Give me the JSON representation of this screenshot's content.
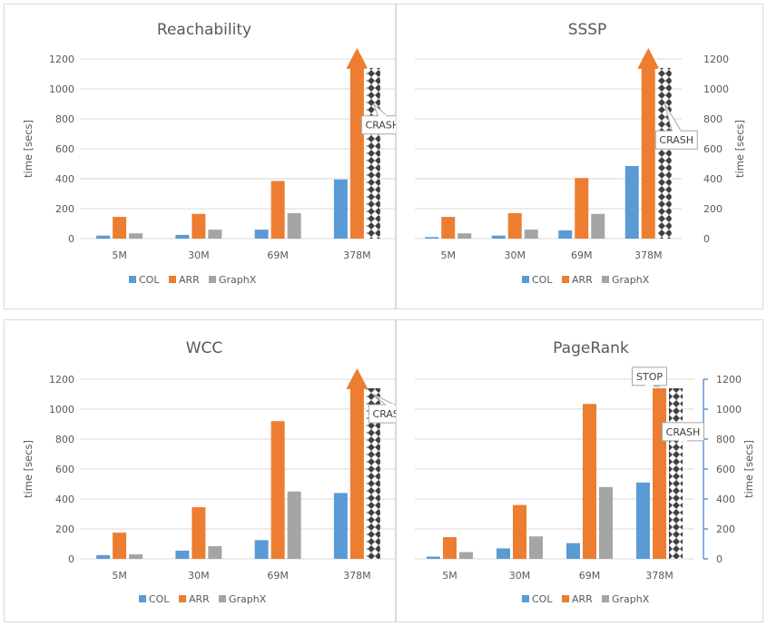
{
  "chart_data": [
    {
      "type": "bar",
      "title": "Reachability",
      "categories": [
        "5M",
        "30M",
        "69M",
        "378M"
      ],
      "ylabel": "time [secs]",
      "ylim": [
        0,
        1200
      ],
      "yticks": [
        0,
        200,
        400,
        600,
        800,
        1000,
        1200
      ],
      "yaxis_side": "left",
      "grid": true,
      "legend": "bottom",
      "series": [
        {
          "name": "COL",
          "values": [
            20,
            25,
            60,
            395
          ],
          "color": "#5B9BD5"
        },
        {
          "name": "ARR",
          "values": [
            145,
            165,
            385,
            1140
          ],
          "color": "#ED7D31"
        },
        {
          "name": "GraphX",
          "values": [
            35,
            60,
            170,
            1140
          ],
          "color": "#A5A5A5"
        }
      ],
      "annotations": [
        {
          "text": "CRASH",
          "series": "GraphX",
          "category": "378M"
        }
      ]
    },
    {
      "type": "bar",
      "title": "SSSP",
      "categories": [
        "5M",
        "30M",
        "69M",
        "378M"
      ],
      "ylabel": "time [secs]",
      "ylim": [
        0,
        1200
      ],
      "yticks": [
        0,
        200,
        400,
        600,
        800,
        1000,
        1200
      ],
      "yaxis_side": "right",
      "grid": true,
      "legend": "bottom",
      "series": [
        {
          "name": "COL",
          "values": [
            10,
            20,
            55,
            485
          ],
          "color": "#5B9BD5"
        },
        {
          "name": "ARR",
          "values": [
            145,
            170,
            405,
            1140
          ],
          "color": "#ED7D31"
        },
        {
          "name": "GraphX",
          "values": [
            35,
            60,
            165,
            1140
          ],
          "color": "#A5A5A5"
        }
      ],
      "annotations": [
        {
          "text": "CRASH",
          "series": "GraphX",
          "category": "378M"
        }
      ]
    },
    {
      "type": "bar",
      "title": "WCC",
      "categories": [
        "5M",
        "30M",
        "69M",
        "378M"
      ],
      "ylabel": "time [secs]",
      "ylim": [
        0,
        1200
      ],
      "yticks": [
        0,
        200,
        400,
        600,
        800,
        1000,
        1200
      ],
      "yaxis_side": "left",
      "grid": true,
      "legend": "bottom",
      "series": [
        {
          "name": "COL",
          "values": [
            25,
            55,
            125,
            440
          ],
          "color": "#5B9BD5"
        },
        {
          "name": "ARR",
          "values": [
            175,
            345,
            920,
            1140
          ],
          "color": "#ED7D31"
        },
        {
          "name": "GraphX",
          "values": [
            30,
            85,
            450,
            1140
          ],
          "color": "#A5A5A5"
        }
      ],
      "annotations": [
        {
          "text": "CRASH",
          "series": "GraphX",
          "category": "378M"
        }
      ]
    },
    {
      "type": "bar",
      "title": "PageRank",
      "categories": [
        "5M",
        "30M",
        "69M",
        "378M"
      ],
      "ylabel": "time [secs]",
      "ylim": [
        0,
        1200
      ],
      "yticks": [
        0,
        200,
        400,
        600,
        800,
        1000,
        1200
      ],
      "yaxis_side": "right",
      "grid": true,
      "legend": "bottom",
      "series": [
        {
          "name": "COL",
          "values": [
            15,
            70,
            105,
            510
          ],
          "color": "#5B9BD5"
        },
        {
          "name": "ARR",
          "values": [
            145,
            360,
            1035,
            1140
          ],
          "color": "#ED7D31"
        },
        {
          "name": "GraphX",
          "values": [
            45,
            150,
            480,
            1140
          ],
          "color": "#A5A5A5"
        }
      ],
      "annotations": [
        {
          "text": "STOP",
          "series": "ARR",
          "category": "378M"
        },
        {
          "text": "CRASH",
          "series": "GraphX",
          "category": "378M"
        }
      ]
    }
  ]
}
